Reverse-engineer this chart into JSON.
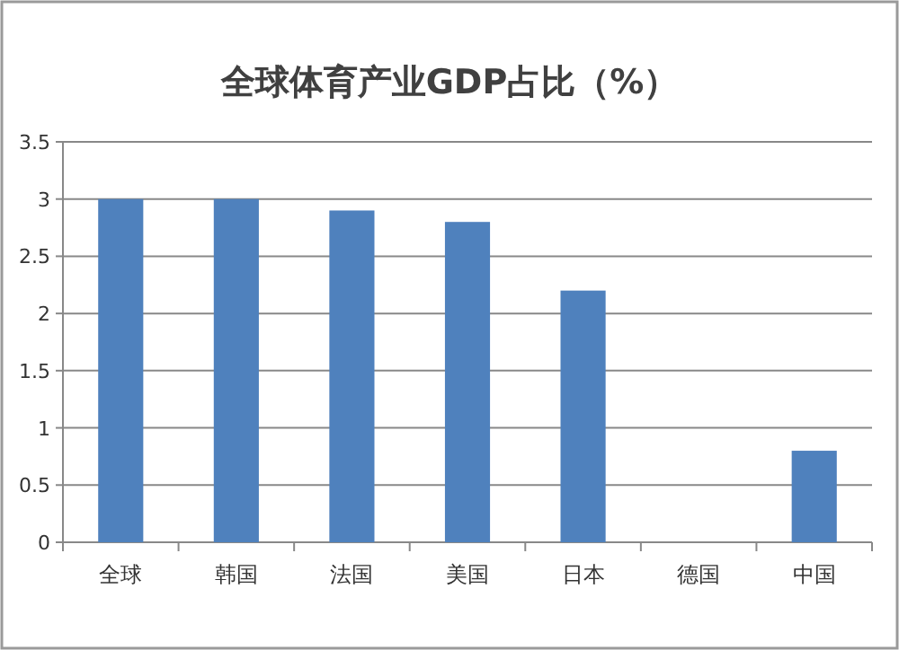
{
  "chart_data": {
    "type": "bar",
    "title": "全球体育产业GDP占比（%）",
    "categories": [
      "全球",
      "韩国",
      "法国",
      "美国",
      "日本",
      "德国",
      "中国"
    ],
    "values": [
      3,
      3,
      2.9,
      2.8,
      2.2,
      null,
      0.8
    ],
    "color": "#4f81bd",
    "ylim": [
      0,
      3.5
    ],
    "yticks": [
      0,
      0.5,
      1,
      1.5,
      2,
      2.5,
      3,
      3.5
    ],
    "grid": "y"
  }
}
